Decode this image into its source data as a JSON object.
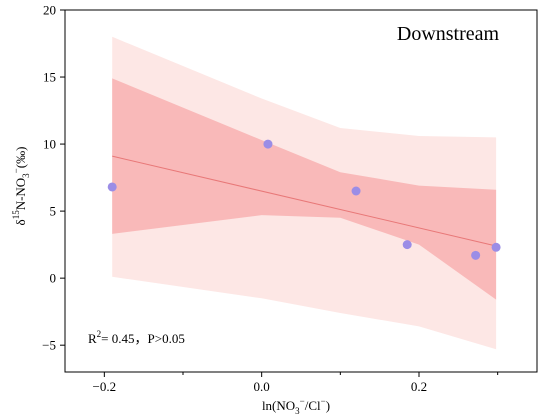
{
  "chart_data": {
    "type": "scatter",
    "title": "Downstream",
    "xlabel": "ln(NO3−/Cl−)",
    "ylabel": "δ15N-NO3−(‰)",
    "xlim": [
      -0.25,
      0.35
    ],
    "ylim": [
      -7,
      20
    ],
    "x_ticks": [
      -0.2,
      0.0,
      0.2
    ],
    "x_tick_labels": [
      "−0.2",
      "0.0",
      "0.2"
    ],
    "y_ticks": [
      -5,
      0,
      5,
      10,
      15,
      20
    ],
    "y_tick_labels": [
      "−5",
      "0",
      "5",
      "10",
      "15",
      "20"
    ],
    "grid": false,
    "points": [
      {
        "x": -0.19,
        "y": 6.8
      },
      {
        "x": 0.008,
        "y": 10.0
      },
      {
        "x": 0.12,
        "y": 6.5
      },
      {
        "x": 0.185,
        "y": 2.5
      },
      {
        "x": 0.272,
        "y": 1.7
      },
      {
        "x": 0.298,
        "y": 2.3
      }
    ],
    "fit_line": {
      "x": [
        -0.19,
        0.298
      ],
      "y": [
        9.1,
        2.4
      ]
    },
    "confidence_band": {
      "x": [
        -0.19,
        0.0,
        0.1,
        0.2,
        0.298
      ],
      "lower": [
        3.3,
        4.7,
        4.5,
        2.5,
        -1.6
      ],
      "upper": [
        14.9,
        10.3,
        7.9,
        6.9,
        6.6
      ]
    },
    "prediction_band": {
      "x": [
        -0.19,
        0.0,
        0.1,
        0.2,
        0.298
      ],
      "lower": [
        0.1,
        -1.5,
        -2.6,
        -3.6,
        -5.3
      ],
      "upper": [
        18.0,
        13.4,
        11.2,
        10.6,
        10.5
      ]
    },
    "annotation": {
      "r2_prefix": "R",
      "r2_exp": "2",
      "r2_value": "= 0.45，P>0.05"
    },
    "colors": {
      "point": "#9b8de6",
      "line": "#e87878",
      "confidence": "#f9b9b9",
      "prediction": "#fde7e5"
    }
  }
}
